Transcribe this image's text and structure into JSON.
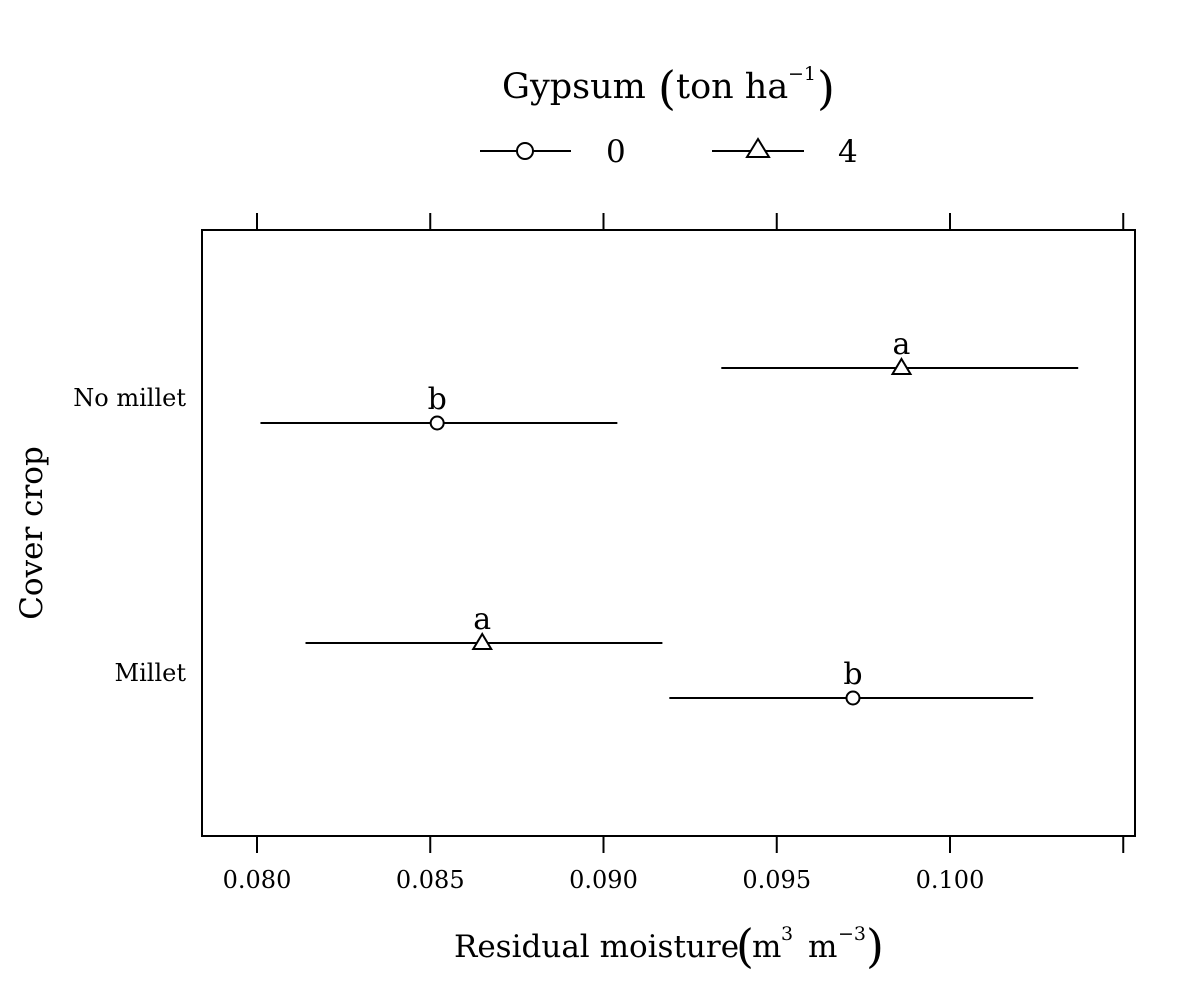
{
  "chart_data": {
    "type": "dot-interval",
    "legend": {
      "title_main": "Gypsum",
      "title_unit_base": "ton  ha",
      "title_unit_exp": "−1",
      "entries": [
        {
          "label": "0",
          "marker": "circle"
        },
        {
          "label": "4",
          "marker": "triangle"
        }
      ],
      "placement": "top"
    },
    "xaxis": {
      "label_main": "Residual moisture",
      "unit_m1": "m",
      "unit_exp1": "3",
      "unit_m2": "m",
      "unit_exp2": "−3",
      "range": [
        0.0784,
        0.1038
      ],
      "ticks": [
        {
          "value": 0.08,
          "label": "0.080"
        },
        {
          "value": 0.085,
          "label": "0.085"
        },
        {
          "value": 0.09,
          "label": "0.090"
        },
        {
          "value": 0.095,
          "label": "0.095"
        },
        {
          "value": 0.1,
          "label": "0.100"
        },
        {
          "value": 0.105,
          "label": ""
        }
      ]
    },
    "yaxis": {
      "label": "Cover crop",
      "categories": [
        "No millet",
        "Millet"
      ]
    },
    "series": [
      {
        "name": "0",
        "marker": "circle",
        "points": [
          {
            "category": "No millet",
            "estimate": 0.0852,
            "lower": 0.0801,
            "upper": 0.0904,
            "letter": "b"
          },
          {
            "category": "Millet",
            "estimate": 0.0972,
            "lower": 0.0919,
            "upper": 0.1024,
            "letter": "b"
          }
        ]
      },
      {
        "name": "4",
        "marker": "triangle",
        "points": [
          {
            "category": "No millet",
            "estimate": 0.0986,
            "lower": 0.0934,
            "upper": 0.1037,
            "letter": "a"
          },
          {
            "category": "Millet",
            "estimate": 0.0865,
            "lower": 0.0814,
            "upper": 0.0917,
            "letter": "a"
          }
        ]
      }
    ],
    "grid": false
  }
}
